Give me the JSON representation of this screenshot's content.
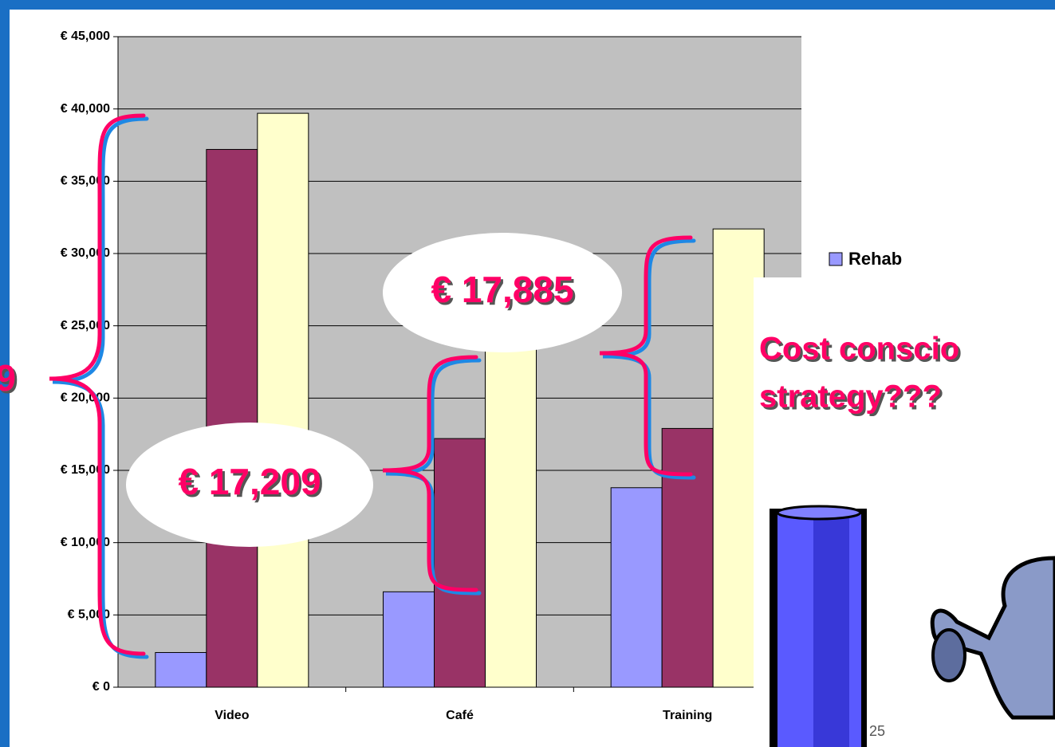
{
  "chart_data": {
    "type": "bar",
    "categories": [
      "Video",
      "Café",
      "Training"
    ],
    "series": [
      {
        "name": "Rehab",
        "color": "#9999ff",
        "values": [
          2400,
          6600,
          13800
        ]
      },
      {
        "color": "#993366",
        "values": [
          37200,
          17200,
          17900
        ]
      },
      {
        "color": "#ffffcc",
        "values": [
          39700,
          23800,
          31700
        ]
      }
    ],
    "ylim": [
      0,
      45000
    ],
    "yticks": [
      {
        "value": 0,
        "label": "€ 0"
      },
      {
        "value": 5000,
        "label": "€ 5,000"
      },
      {
        "value": 10000,
        "label": "€ 10,000"
      },
      {
        "value": 15000,
        "label": "€ 15,000"
      },
      {
        "value": 20000,
        "label": "€ 20,000"
      },
      {
        "value": 25000,
        "label": "€ 25,000"
      },
      {
        "value": 30000,
        "label": "€ 30,000"
      },
      {
        "value": 35000,
        "label": "€ 35,000"
      },
      {
        "value": 40000,
        "label": "€ 40,000"
      },
      {
        "value": 45000,
        "label": "€ 45,000"
      }
    ],
    "grid": true,
    "annotations": [
      "€ 17,885",
      "€ 17,209",
      "9",
      "Cost conscio",
      "strategy???",
      "25"
    ]
  }
}
